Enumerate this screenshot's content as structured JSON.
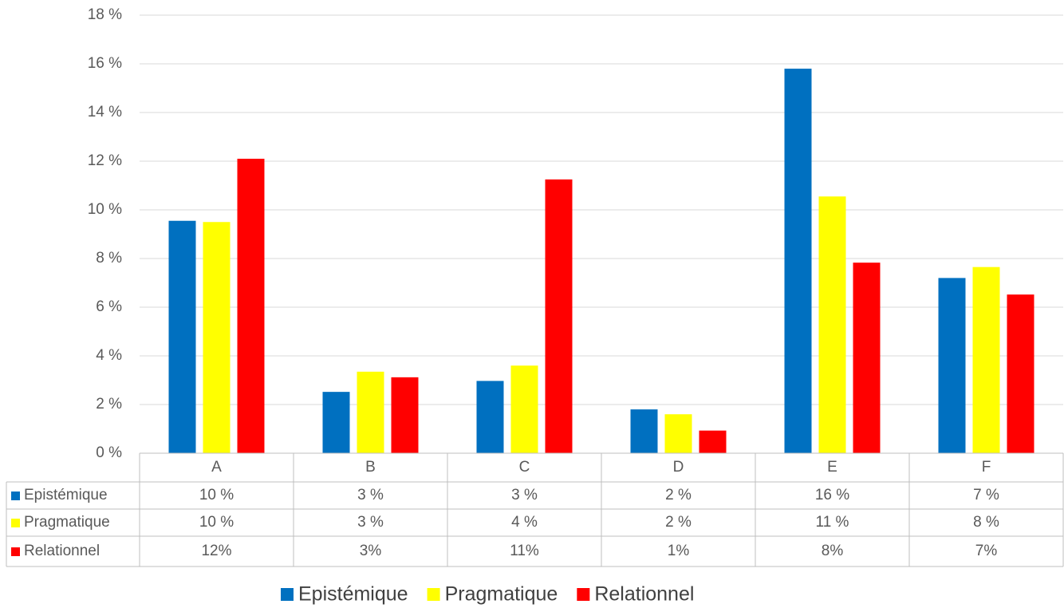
{
  "chart_data": {
    "type": "bar",
    "categories": [
      "A",
      "B",
      "C",
      "D",
      "E",
      "F"
    ],
    "series": [
      {
        "name": "Epistémique",
        "color": "#0070c0",
        "values": [
          9.55,
          2.52,
          2.97,
          1.8,
          15.8,
          7.2
        ],
        "value_labels": [
          "10 %",
          "3 %",
          "3 %",
          "2 %",
          "16 %",
          "7 %"
        ]
      },
      {
        "name": "Pragmatique",
        "color": "#ffff00",
        "values": [
          9.5,
          3.35,
          3.6,
          1.6,
          10.55,
          7.65
        ],
        "value_labels": [
          "10 %",
          "3 %",
          "4 %",
          "2 %",
          "11 %",
          "8 %"
        ]
      },
      {
        "name": "Relationnel",
        "color": "#ff0000",
        "values": [
          12.1,
          3.12,
          11.25,
          0.93,
          7.83,
          6.52
        ],
        "value_labels": [
          "12%",
          "3%",
          "11%",
          "1%",
          "8%",
          "7%"
        ]
      }
    ],
    "ylim": [
      0,
      18
    ],
    "yticks": [
      {
        "value": 0,
        "label": "0 %"
      },
      {
        "value": 2,
        "label": "2 %"
      },
      {
        "value": 4,
        "label": "4 %"
      },
      {
        "value": 6,
        "label": "6 %"
      },
      {
        "value": 8,
        "label": "8 %"
      },
      {
        "value": 10,
        "label": "10 %"
      },
      {
        "value": 12,
        "label": "12 %"
      },
      {
        "value": 14,
        "label": "14 %"
      },
      {
        "value": 16,
        "label": "16 %"
      },
      {
        "value": 18,
        "label": "18 %"
      }
    ],
    "grid": true,
    "legend": "bottom"
  }
}
